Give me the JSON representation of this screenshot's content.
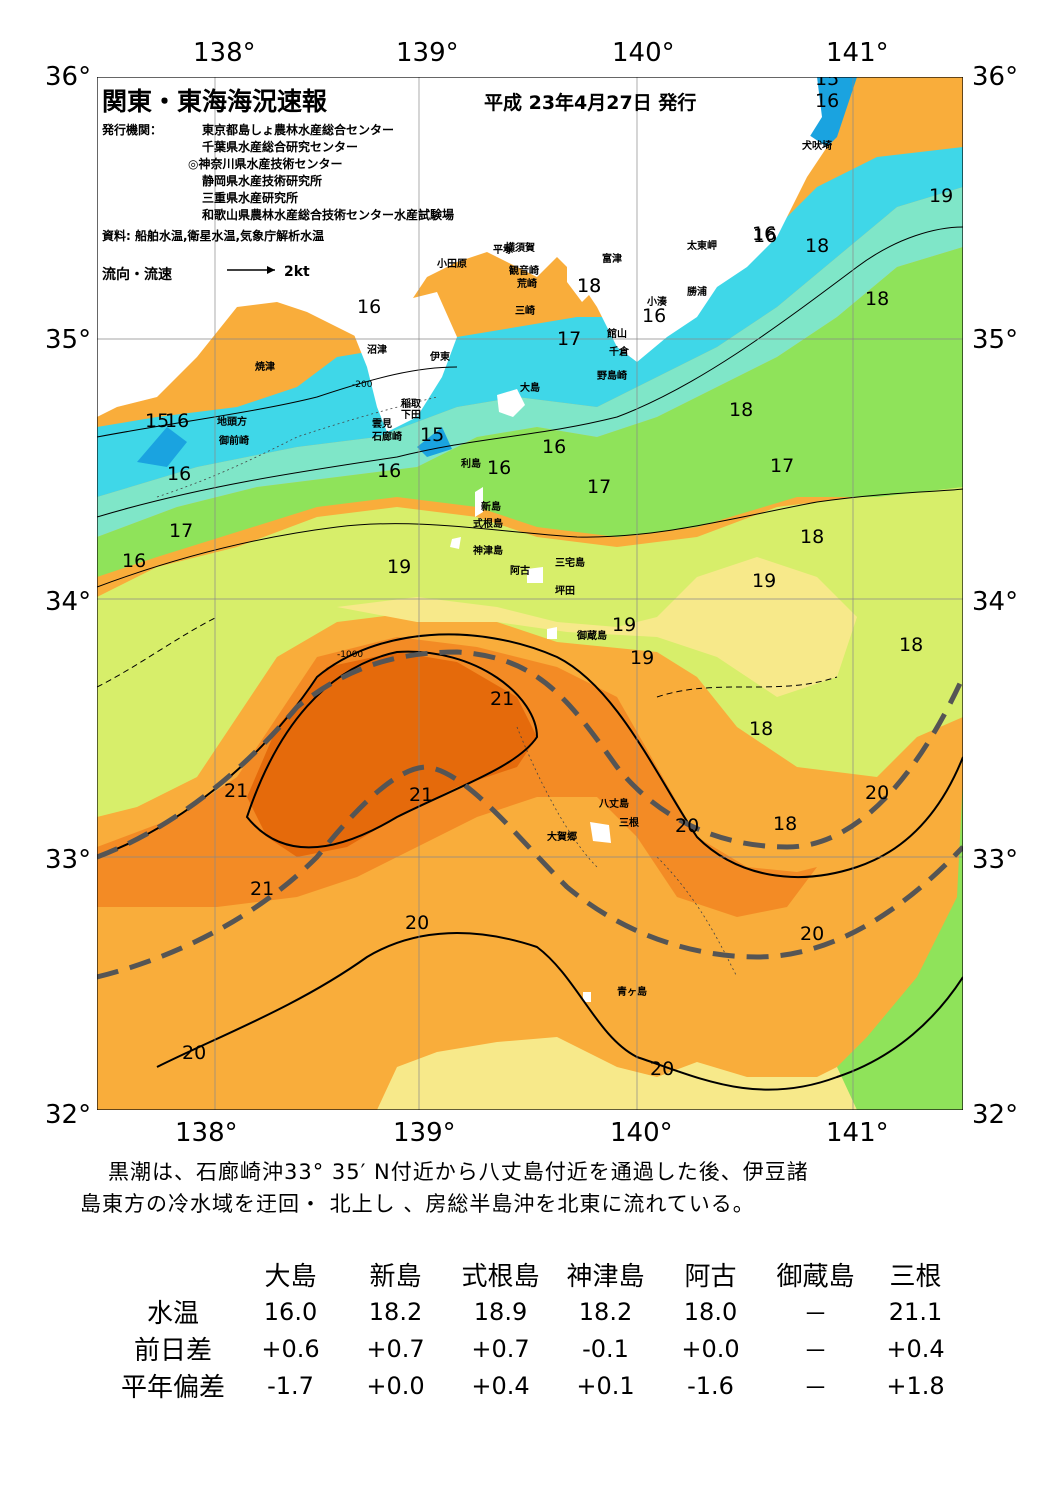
{
  "header": {
    "title": "関東・東海海況速報",
    "date": "平成 23年4月27日 発行"
  },
  "publisher": {
    "label": "発行機関：",
    "orgs": [
      "東京都島しょ農林水産総合センター",
      "千葉県水産総合研究センター",
      "◎神奈川県水産技術センター",
      "静岡県水産技術研究所",
      "三重県水産研究所",
      "和歌山県農林水産総合技術センター水産試験場"
    ],
    "sources": "資料: 船舶水温,衛星水温,気象庁解析水温"
  },
  "legend": {
    "label": "流向・流速",
    "speed": "2kt"
  },
  "axes": {
    "lon_labels": [
      "138°",
      "139°",
      "140°",
      "141°"
    ],
    "lat_labels": [
      "36°",
      "35°",
      "34°",
      "33°",
      "32°"
    ]
  },
  "colors": {
    "t15": "#1aa3e0",
    "t16": "#3fd7e8",
    "t17": "#7fe6c8",
    "t18": "#8fe35a",
    "t19": "#d7ee6a",
    "t19b": "#f7e98a",
    "t20": "#fccc5c",
    "t20b": "#f9ad3b",
    "t21": "#f38b25",
    "t22": "#e56a0b",
    "land": "#ffffff",
    "kuroshio": "#555555"
  },
  "map_labels": {
    "places": [
      "犬吠埼",
      "太東岬",
      "勝浦",
      "小湊",
      "館山",
      "千倉",
      "野島崎",
      "富津",
      "観音崎",
      "荒崎",
      "三崎",
      "横須賀",
      "平塚",
      "小田原",
      "沼津",
      "伊東",
      "焼津",
      "稲取",
      "下田",
      "雲見",
      "石廊崎",
      "地頭方",
      "御前崎",
      "大島",
      "利島",
      "新島",
      "式根島",
      "神津島",
      "阿古",
      "三宅島",
      "坪田",
      "御蔵島",
      "八丈島",
      "三根",
      "大賀郷",
      "青ヶ島"
    ],
    "isotherms": [
      "15",
      "16",
      "16",
      "18",
      "16",
      "17",
      "16",
      "16",
      "16",
      "18",
      "18",
      "19",
      "16",
      "15",
      "16",
      "15",
      "16",
      "17",
      "16",
      "17",
      "18",
      "17",
      "18",
      "19",
      "19",
      "19",
      "18",
      "19",
      "21",
      "18",
      "21",
      "21",
      "20",
      "20",
      "18",
      "21",
      "20",
      "20",
      "20",
      "20",
      "16",
      "18"
    ],
    "depths": [
      "-200",
      "-1000"
    ]
  },
  "summary": {
    "line1": "黒潮は、石廊崎沖33° 35′ N付近から八丈島付近を通過した後、伊豆諸",
    "line2": "島東方の冷水域を迂回・ 北上し 、房総半島沖を北東に流れている。"
  },
  "observations": {
    "stations": [
      "大島",
      "新島",
      "式根島",
      "神津島",
      "阿古",
      "御蔵島",
      "三根"
    ],
    "rows": [
      {
        "label": "水温",
        "values": [
          "16.0",
          "18.2",
          "18.9",
          "18.2",
          "18.0",
          "－",
          "21.1"
        ]
      },
      {
        "label": "前日差",
        "values": [
          "+0.6",
          "+0.7",
          "+0.7",
          "-0.1",
          "+0.0",
          "－",
          "+0.4"
        ]
      },
      {
        "label": "平年偏差",
        "values": [
          "-1.7",
          "+0.0",
          "+0.4",
          "+0.1",
          "-1.6",
          "－",
          "+1.8"
        ]
      }
    ]
  }
}
